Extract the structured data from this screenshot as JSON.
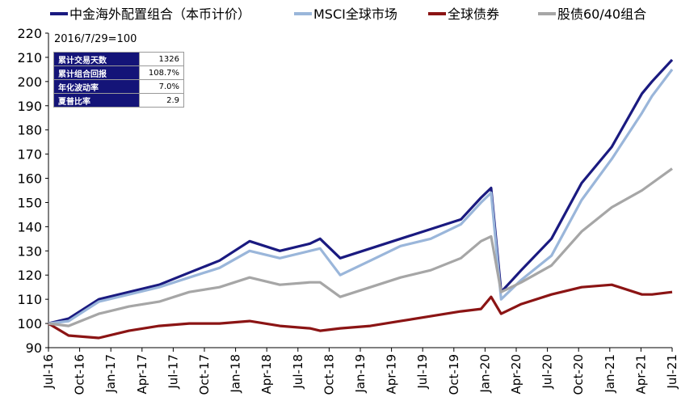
{
  "chart_data": {
    "type": "line",
    "base_note": "2016/7/29=100",
    "ylim": [
      90,
      220
    ],
    "yticks": [
      "90",
      "100",
      "110",
      "120",
      "130",
      "140",
      "150",
      "160",
      "170",
      "180",
      "190",
      "200",
      "210",
      "220"
    ],
    "xticks": [
      "Jul-16",
      "Oct-16",
      "Jan-17",
      "Apr-17",
      "Jul-17",
      "Oct-17",
      "Jan-18",
      "Apr-18",
      "Jul-18",
      "Oct-18",
      "Jan-19",
      "Apr-19",
      "Jul-19",
      "Oct-19",
      "Jan-20",
      "Apr-20",
      "Jul-20",
      "Oct-20",
      "Jan-21",
      "Apr-21",
      "Jul-21"
    ],
    "x_index": [
      0,
      2,
      5,
      8,
      11,
      14,
      17,
      20,
      23,
      26,
      27,
      29,
      32,
      35,
      38,
      41,
      43,
      44,
      45,
      47,
      50,
      53,
      56,
      59,
      60,
      62
    ],
    "series": [
      {
        "name": "中金海外配置组合（本币计价）",
        "color": "#1a1a80",
        "values": [
          100,
          102,
          110,
          113,
          116,
          121,
          126,
          134,
          130,
          133,
          135,
          127,
          131,
          135,
          139,
          143,
          152,
          156,
          113,
          122,
          135,
          158,
          173,
          195,
          200,
          209
        ]
      },
      {
        "name": "MSCI全球市场",
        "color": "#9ab6da",
        "values": [
          100,
          101,
          109,
          112,
          115,
          119,
          123,
          130,
          127,
          130,
          131,
          120,
          126,
          132,
          135,
          141,
          150,
          154,
          110,
          118,
          128,
          151,
          168,
          187,
          194,
          205
        ]
      },
      {
        "name": "全球债券",
        "color": "#8b1414",
        "values": [
          100,
          95,
          94,
          97,
          99,
          100,
          100,
          101,
          99,
          98,
          97,
          98,
          99,
          101,
          103,
          105,
          106,
          111,
          104,
          108,
          112,
          115,
          116,
          112,
          112,
          113
        ]
      },
      {
        "name": "股债60/40组合",
        "color": "#a6a6a6",
        "values": [
          100,
          99,
          104,
          107,
          109,
          113,
          115,
          119,
          116,
          117,
          117,
          111,
          115,
          119,
          122,
          127,
          134,
          136,
          113,
          117,
          124,
          138,
          148,
          155,
          158,
          164
        ]
      }
    ],
    "stats_table": [
      {
        "label": "累计交易天数",
        "value": "1326"
      },
      {
        "label": "累计组合回报",
        "value": "108.7%"
      },
      {
        "label": "年化波动率",
        "value": "7.0%"
      },
      {
        "label": "夏普比率",
        "value": "2.9"
      }
    ]
  }
}
